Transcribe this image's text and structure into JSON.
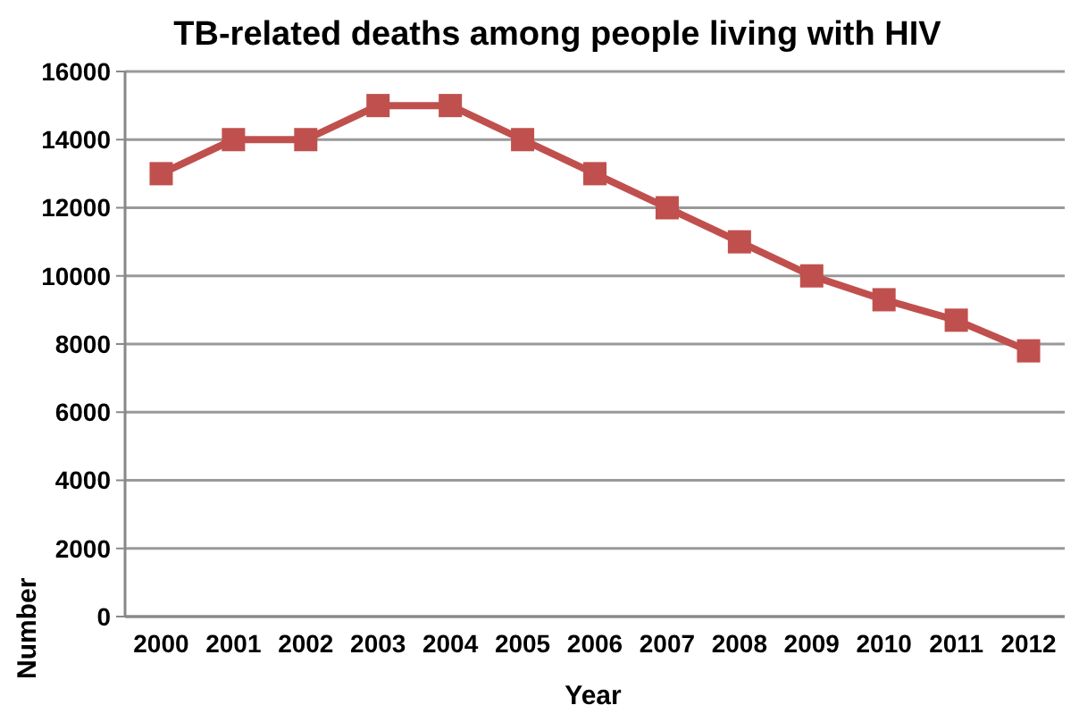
{
  "chart_data": {
    "type": "line",
    "title": "TB-related deaths among people living with HIV",
    "xlabel": "Year",
    "ylabel": "Number",
    "categories": [
      "2000",
      "2001",
      "2002",
      "2003",
      "2004",
      "2005",
      "2006",
      "2007",
      "2008",
      "2009",
      "2010",
      "2011",
      "2012"
    ],
    "series": [
      {
        "color": "#c0504d",
        "values": [
          13000,
          14000,
          14000,
          15000,
          15000,
          14000,
          13000,
          12000,
          11000,
          10000,
          9300,
          8700,
          7800
        ]
      }
    ],
    "ylim": [
      0,
      16000
    ],
    "yticks": [
      0,
      2000,
      4000,
      6000,
      8000,
      10000,
      12000,
      14000,
      16000
    ],
    "grid": "y",
    "marker": "square",
    "line_style": "solid"
  }
}
